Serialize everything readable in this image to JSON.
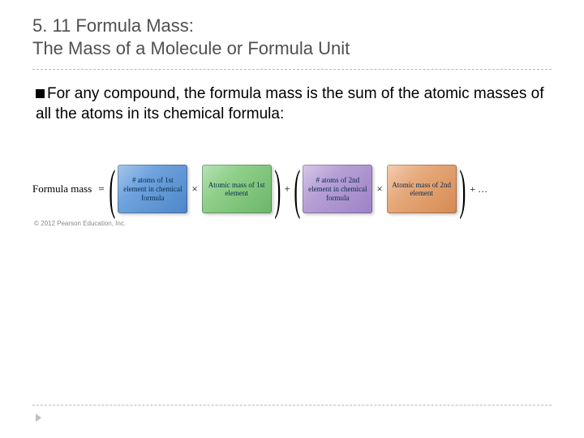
{
  "title": {
    "line1": "5. 11  Formula Mass:",
    "line2": "The Mass of a Molecule or Formula Unit"
  },
  "bullet_text": "For any compound, the formula mass is the sum of the atomic masses of all the atoms in its chemical formula:",
  "formula": {
    "label": "Formula mass",
    "equals": "=",
    "times": "×",
    "plus": "+",
    "plus_ellipsis": "+ …",
    "tiles": [
      {
        "text": "# atoms of 1st element in chemical formula",
        "color_class": "tile-blue"
      },
      {
        "text": "Atomic mass of 1st element",
        "color_class": "tile-green"
      },
      {
        "text": "# atoms of 2nd element in chemical formula",
        "color_class": "tile-purple"
      },
      {
        "text": "Atomic mass of 2nd element",
        "color_class": "tile-orange"
      }
    ],
    "tile_colors": {
      "blue": [
        "#a6c6ec",
        "#4e86c8"
      ],
      "green": [
        "#b9e2b6",
        "#6db66a"
      ],
      "purple": [
        "#d7c8e8",
        "#9d82c6"
      ],
      "orange": [
        "#f3cdb1",
        "#d68a50"
      ]
    }
  },
  "copyright": "© 2012 Pearson Education, Inc."
}
